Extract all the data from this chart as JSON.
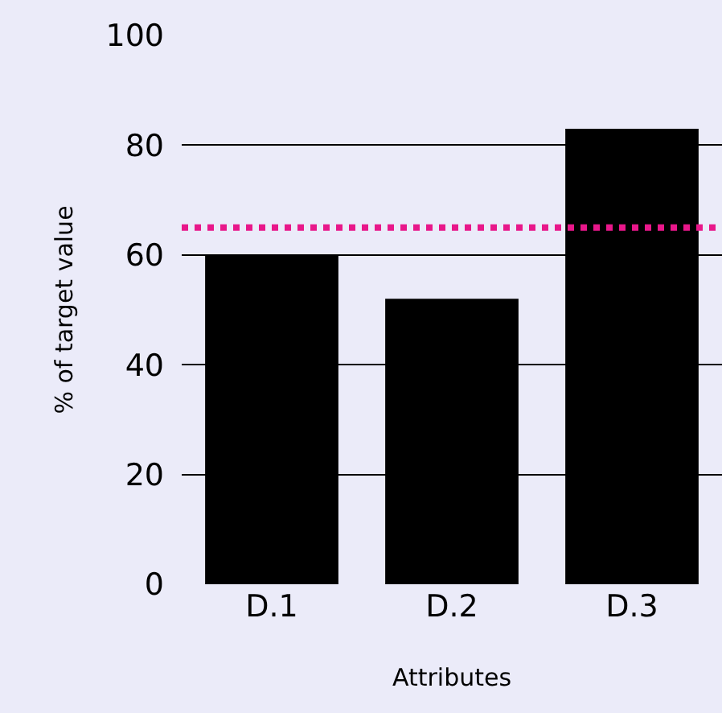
{
  "chart_data": {
    "type": "bar",
    "xlabel": "Attributes",
    "ylabel": "% of target value",
    "categories": [
      "D.1",
      "D.2",
      "D.3"
    ],
    "values": [
      60,
      52,
      83
    ],
    "color": "#000000",
    "ylim": [
      0,
      100
    ],
    "yticks": [
      0,
      20,
      40,
      60,
      80,
      100
    ],
    "grid": "y",
    "ref_lines": [
      {
        "axis": "y",
        "value": 65,
        "color": "#e8178a",
        "line_style": "dotted"
      }
    ]
  }
}
